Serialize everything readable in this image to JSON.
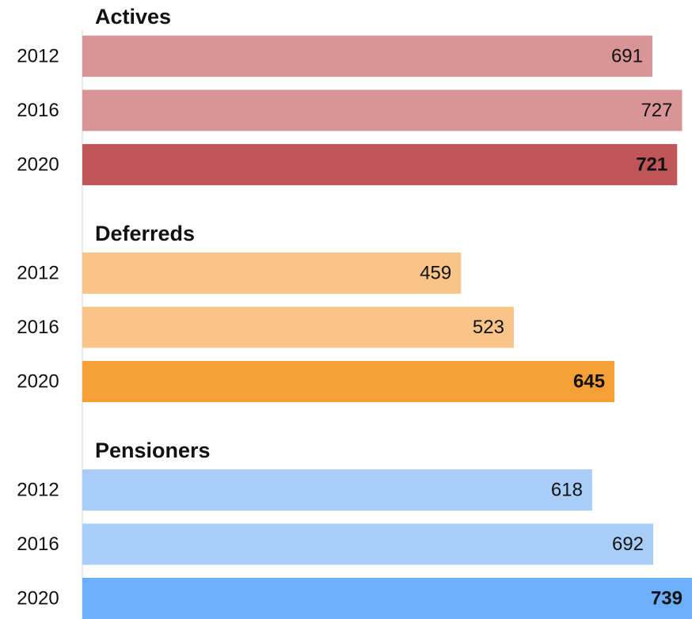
{
  "chart_data": {
    "type": "bar",
    "groups": [
      {
        "title": "Actives",
        "categories": [
          "2012",
          "2016",
          "2020"
        ],
        "values": [
          691,
          727,
          721
        ],
        "colors": [
          "#d99596",
          "#d99596",
          "#c0555a"
        ]
      },
      {
        "title": "Deferreds",
        "categories": [
          "2012",
          "2016",
          "2020"
        ],
        "values": [
          459,
          523,
          645
        ],
        "colors": [
          "#f8c488",
          "#f8c488",
          "#f4a037"
        ]
      },
      {
        "title": "Pensioners",
        "categories": [
          "2012",
          "2016",
          "2020"
        ],
        "values": [
          618,
          692,
          739
        ],
        "colors": [
          "#a9cdf9",
          "#a9cdf9",
          "#6cb0fb"
        ]
      }
    ]
  }
}
